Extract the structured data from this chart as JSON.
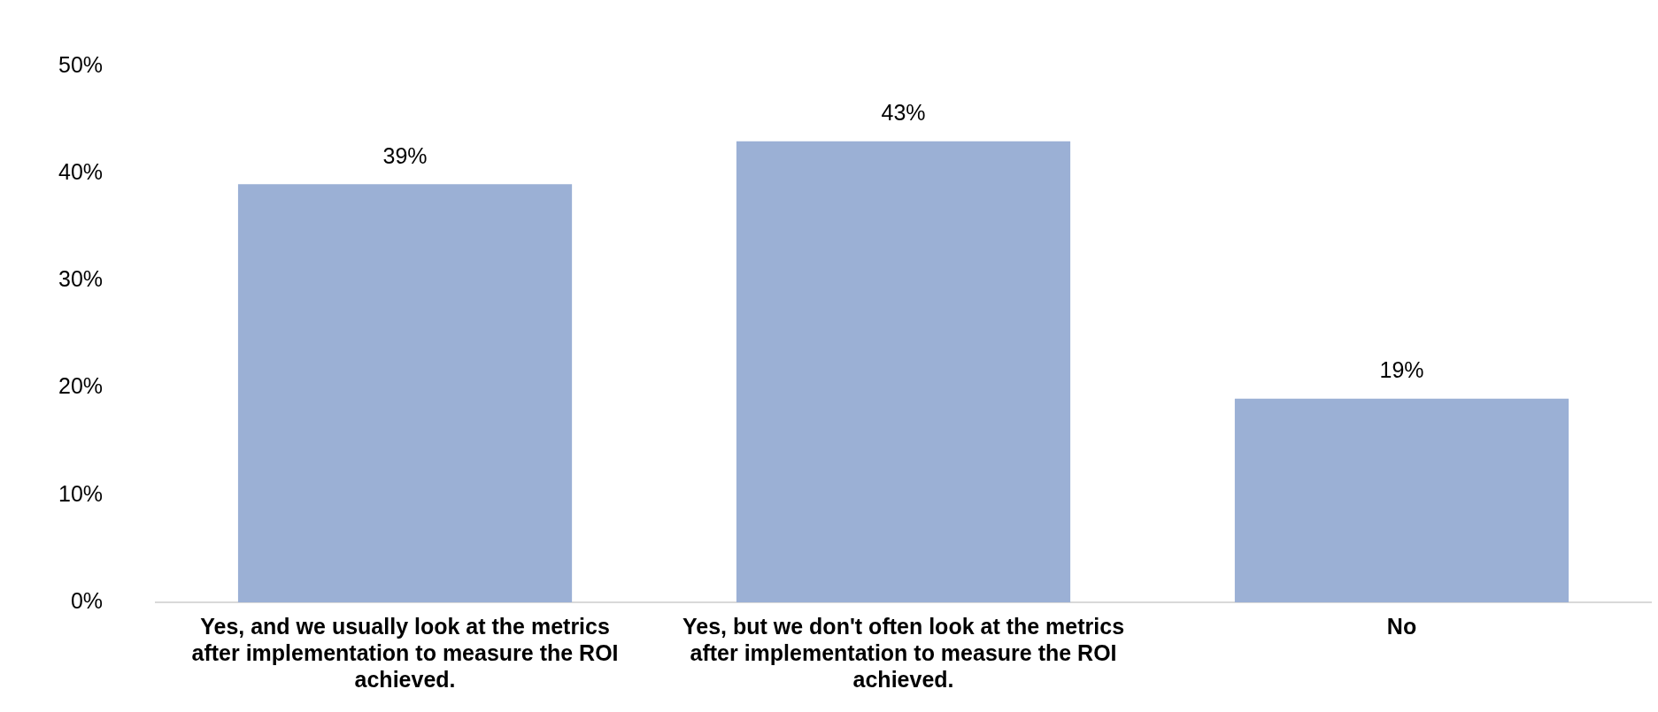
{
  "chart_data": {
    "type": "bar",
    "categories": [
      "Yes, and we usually look at the metrics after implementation to measure the ROI achieved.",
      "Yes, but we don't often look at the metrics after implementation to measure the ROI achieved.",
      "No"
    ],
    "values": [
      39,
      43,
      19
    ],
    "value_labels": [
      "39%",
      "43%",
      "19%"
    ],
    "color": "#9bb0d5",
    "ylim": [
      0,
      50
    ],
    "yticks": [
      {
        "value": 0,
        "label": "0%"
      },
      {
        "value": 10,
        "label": "10%"
      },
      {
        "value": 20,
        "label": "20%"
      },
      {
        "value": 30,
        "label": "30%"
      },
      {
        "value": 40,
        "label": "40%"
      },
      {
        "value": 50,
        "label": "50%"
      }
    ],
    "grid": false,
    "legend": false
  }
}
